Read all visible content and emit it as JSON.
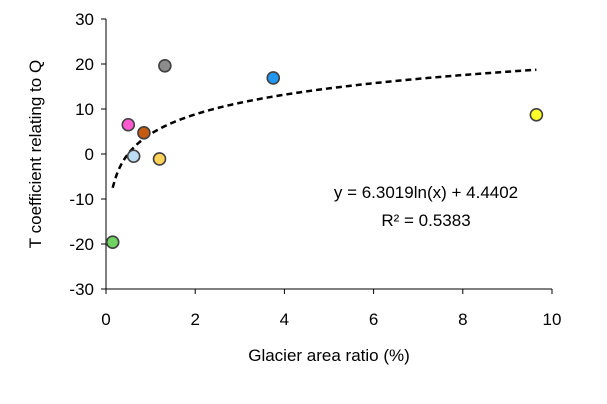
{
  "chart_data": {
    "type": "scatter",
    "xlabel": "Glacier area ratio (%)",
    "ylabel": "T coefficient relating to Q",
    "xlim": [
      0,
      10
    ],
    "ylim": [
      -30,
      30
    ],
    "xticks": [
      0,
      2,
      4,
      6,
      8,
      10
    ],
    "yticks": [
      -30,
      -20,
      -10,
      0,
      10,
      20,
      30
    ],
    "grid": false,
    "points": [
      {
        "x": 0.15,
        "y": -19.6,
        "color": "#70d260"
      },
      {
        "x": 0.5,
        "y": 6.5,
        "color": "#ff5ad0"
      },
      {
        "x": 0.62,
        "y": -0.5,
        "color": "#bcdcf4"
      },
      {
        "x": 0.85,
        "y": 4.7,
        "color": "#c55a11"
      },
      {
        "x": 1.2,
        "y": -1.1,
        "color": "#ffd25a"
      },
      {
        "x": 1.32,
        "y": 19.6,
        "color": "#8c8c8c"
      },
      {
        "x": 3.75,
        "y": 16.9,
        "color": "#2196f3"
      },
      {
        "x": 9.65,
        "y": 8.7,
        "color": "#ffff2a"
      }
    ],
    "trendline": {
      "type": "logarithmic",
      "a": 6.3019,
      "b": 4.4402,
      "x_range": [
        0.15,
        9.65
      ],
      "style": "dashed"
    },
    "annotations": {
      "equation": "y = 6.3019ln(x) + 4.4402",
      "r_squared": "R² = 0.5383"
    }
  }
}
